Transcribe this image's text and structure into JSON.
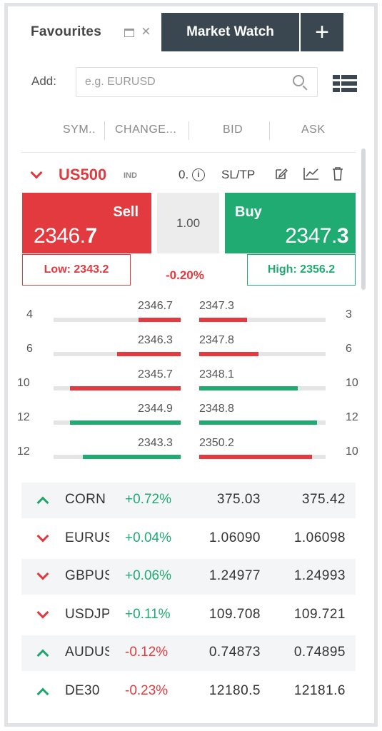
{
  "tabs": {
    "favourites": "Favourites",
    "market_watch": "Market Watch",
    "add_tab": "+"
  },
  "add": {
    "label": "Add:",
    "placeholder": "e.g. EURUSD"
  },
  "columns": [
    "SYM..",
    "CHANGE...",
    "BID",
    "ASK"
  ],
  "instrument": {
    "symbol": "US500",
    "type": "IND",
    "lot_small": "0.",
    "info_glyph": "i",
    "sltp": "SL/TP",
    "sell_label": "Sell",
    "sell_price_main": "2346.",
    "sell_price_big": "7",
    "lot": "1.00",
    "buy_label": "Buy",
    "buy_price_main": "2347.",
    "buy_price_big": "3",
    "low": "Low: 2343.2",
    "high": "High: 2356.2",
    "change": "-0.20%",
    "colors": {
      "sell": "#e23a3e",
      "buy": "#1fab72"
    }
  },
  "depth": [
    {
      "bid_vol": "4",
      "bid": "2346.7",
      "ask": "2347.3",
      "ask_vol": "3",
      "bid_fill": 0.33,
      "ask_fill": 0.38,
      "bid_color": "red",
      "ask_color": "red"
    },
    {
      "bid_vol": "6",
      "bid": "2346.3",
      "ask": "2347.8",
      "ask_vol": "6",
      "bid_fill": 0.5,
      "ask_fill": 0.47,
      "bid_color": "red",
      "ask_color": "red"
    },
    {
      "bid_vol": "10",
      "bid": "2345.7",
      "ask": "2348.1",
      "ask_vol": "10",
      "bid_fill": 0.87,
      "ask_fill": 0.78,
      "bid_color": "red",
      "ask_color": "green"
    },
    {
      "bid_vol": "12",
      "bid": "2344.9",
      "ask": "2348.8",
      "ask_vol": "12",
      "bid_fill": 0.87,
      "ask_fill": 0.93,
      "bid_color": "green",
      "ask_color": "green"
    },
    {
      "bid_vol": "12",
      "bid": "2343.3",
      "ask": "2350.2",
      "ask_vol": "10",
      "bid_fill": 0.77,
      "ask_fill": 0.89,
      "bid_color": "green",
      "ask_color": "red"
    }
  ],
  "watchlist": [
    {
      "direction": "up",
      "symbol": "CORN",
      "change": "+0.72%",
      "bid": "375.03",
      "ask": "375.42"
    },
    {
      "direction": "down",
      "symbol": "EURUSD",
      "change": "+0.04%",
      "bid": "1.06090",
      "ask": "1.06098"
    },
    {
      "direction": "down",
      "symbol": "GBPUSD",
      "change": "+0.06%",
      "bid": "1.24977",
      "ask": "1.24993"
    },
    {
      "direction": "down",
      "symbol": "USDJPY",
      "change": "+0.11%",
      "bid": "109.708",
      "ask": "109.721"
    },
    {
      "direction": "up",
      "symbol": "AUDUSD",
      "change": "-0.12%",
      "bid": "0.74873",
      "ask": "0.74895"
    },
    {
      "direction": "up",
      "symbol": "DE30",
      "change": "-0.23%",
      "bid": "12180.5",
      "ask": "12181.6"
    }
  ]
}
